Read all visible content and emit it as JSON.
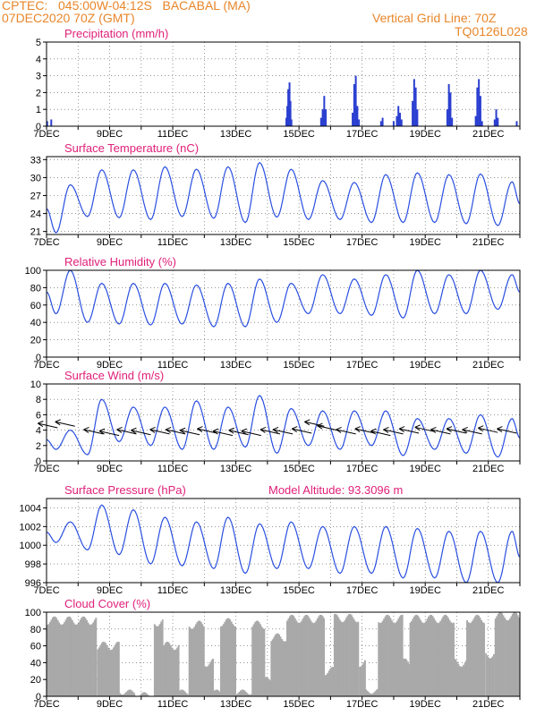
{
  "header": {
    "line1": "CPTEC:   045:00W-04:12S   BACABAL (MA)",
    "line2": "07DEC2020 70Z (GMT)",
    "vgrid": "Vertical Grid Line: 70Z",
    "code": "TQ0126L028",
    "model_altitude": "Model Altitude: 93.3096  m"
  },
  "colors": {
    "header": "#e8862a",
    "title": "#e0207a",
    "line": "#2a4fe0",
    "bar": "#2a3fd0",
    "cloud": "#a9a9a9"
  },
  "chart_data": [
    {
      "type": "bar",
      "title": "Precipitation (mm/h)",
      "xlabel": "",
      "ylabel": "",
      "x_ticks": [
        "7DEC",
        "9DEC",
        "11DEC",
        "13DEC",
        "15DEC",
        "17DEC",
        "19DEC",
        "21DEC"
      ],
      "yticks": [
        0,
        1,
        2,
        3,
        4,
        5
      ],
      "ylim": [
        0,
        5
      ],
      "xlim_days": [
        7,
        22
      ],
      "grid": true,
      "events": [
        [
          7.02,
          0.3
        ],
        [
          7.15,
          0.4
        ],
        [
          14.6,
          0.5
        ],
        [
          14.63,
          1.2
        ],
        [
          14.66,
          2.2
        ],
        [
          14.7,
          2.6
        ],
        [
          14.73,
          1.5
        ],
        [
          14.76,
          0.4
        ],
        [
          15.7,
          0.5
        ],
        [
          15.75,
          1.0
        ],
        [
          15.8,
          1.8
        ],
        [
          15.85,
          1.0
        ],
        [
          16.7,
          0.8
        ],
        [
          16.75,
          2.5
        ],
        [
          16.8,
          3.0
        ],
        [
          16.85,
          1.2
        ],
        [
          16.9,
          0.4
        ],
        [
          17.6,
          0.3
        ],
        [
          17.65,
          0.5
        ],
        [
          18.0,
          0.3
        ],
        [
          18.1,
          0.6
        ],
        [
          18.15,
          1.2
        ],
        [
          18.2,
          0.8
        ],
        [
          18.25,
          0.4
        ],
        [
          18.6,
          1.5
        ],
        [
          18.65,
          2.8
        ],
        [
          18.7,
          2.3
        ],
        [
          18.75,
          1.0
        ],
        [
          19.7,
          1.0
        ],
        [
          19.75,
          2.5
        ],
        [
          19.8,
          2.0
        ],
        [
          19.85,
          0.5
        ],
        [
          20.6,
          0.6
        ],
        [
          20.65,
          2.3
        ],
        [
          20.7,
          2.8
        ],
        [
          20.75,
          1.8
        ],
        [
          20.8,
          0.3
        ],
        [
          21.2,
          0.4
        ],
        [
          21.25,
          1.0
        ],
        [
          21.3,
          0.5
        ],
        [
          21.9,
          0.3
        ]
      ]
    },
    {
      "type": "line",
      "title": "Surface Temperature (nC)",
      "xlabel": "",
      "ylabel": "",
      "x_ticks": [
        "7DEC",
        "9DEC",
        "11DEC",
        "13DEC",
        "15DEC",
        "17DEC",
        "19DEC",
        "21DEC"
      ],
      "yticks": [
        21,
        24,
        27,
        30,
        33
      ],
      "ylim": [
        20.5,
        33.5
      ],
      "xlim_days": [
        7,
        22
      ],
      "daily": {
        "days": [
          7,
          8,
          9,
          10,
          11,
          12,
          13,
          14,
          15,
          16,
          17,
          18,
          19,
          20,
          21
        ],
        "min": [
          20.8,
          23.5,
          23.3,
          23.0,
          23.5,
          23.2,
          22.5,
          23.4,
          23.0,
          23.0,
          22.5,
          22.5,
          22.5,
          22.3,
          22.0
        ],
        "max": [
          28.8,
          31.3,
          31.3,
          31.8,
          31.4,
          31.8,
          32.5,
          31.4,
          29.5,
          29.2,
          30.5,
          30.8,
          30.5,
          30.6,
          29.3
        ]
      }
    },
    {
      "type": "line",
      "title": "Relative Humidity (%)",
      "xlabel": "",
      "ylabel": "",
      "x_ticks": [
        "7DEC",
        "9DEC",
        "11DEC",
        "13DEC",
        "15DEC",
        "17DEC",
        "19DEC",
        "21DEC"
      ],
      "yticks": [
        0,
        20,
        40,
        60,
        80,
        100
      ],
      "ylim": [
        0,
        100
      ],
      "xlim_days": [
        7,
        22
      ],
      "daily": {
        "days": [
          7,
          8,
          9,
          10,
          11,
          12,
          13,
          14,
          15,
          16,
          17,
          18,
          19,
          20,
          21
        ],
        "min": [
          50,
          40,
          38,
          37,
          38,
          35,
          35,
          40,
          50,
          50,
          48,
          45,
          50,
          50,
          55
        ],
        "max": [
          100,
          85,
          85,
          85,
          83,
          85,
          90,
          85,
          95,
          90,
          95,
          100,
          95,
          100,
          95
        ]
      }
    },
    {
      "type": "line",
      "title": "Surface Wind (m/s)",
      "xlabel": "",
      "ylabel": "",
      "x_ticks": [
        "7DEC",
        "9DEC",
        "11DEC",
        "13DEC",
        "15DEC",
        "17DEC",
        "19DEC",
        "21DEC"
      ],
      "yticks": [
        0,
        2,
        4,
        6,
        8,
        10
      ],
      "ylim": [
        0,
        10
      ],
      "xlim_days": [
        7,
        22
      ],
      "daily": {
        "days": [
          7,
          8,
          9,
          10,
          11,
          12,
          13,
          14,
          15,
          16,
          17,
          18,
          19,
          20,
          21
        ],
        "min": [
          1.5,
          0.8,
          2.5,
          2.0,
          1.5,
          1.5,
          1.8,
          1.0,
          2.0,
          1.5,
          2.0,
          0.7,
          1.5,
          1.0,
          0.5
        ],
        "max": [
          4.0,
          8.0,
          7.0,
          7.0,
          7.8,
          7.0,
          8.5,
          6.8,
          6.5,
          6.5,
          6.5,
          5.5,
          5.5,
          6.0,
          5.5
        ]
      },
      "arrows": [
        [
          7.35,
          4.3
        ],
        [
          7.9,
          4.5
        ],
        [
          8.8,
          3.5
        ],
        [
          9.3,
          3.3
        ],
        [
          9.85,
          3.5
        ],
        [
          10.3,
          3.4
        ],
        [
          10.9,
          3.5
        ],
        [
          11.4,
          3.5
        ],
        [
          11.85,
          3.4
        ],
        [
          12.4,
          3.6
        ],
        [
          12.9,
          3.3
        ],
        [
          13.4,
          3.4
        ],
        [
          13.8,
          3.3
        ],
        [
          14.4,
          3.5
        ],
        [
          14.8,
          3.5
        ],
        [
          15.4,
          3.6
        ],
        [
          15.8,
          4.5
        ],
        [
          16.2,
          4.0
        ],
        [
          16.8,
          3.5
        ],
        [
          17.4,
          3.6
        ],
        [
          17.9,
          3.3
        ],
        [
          18.3,
          3.5
        ],
        [
          18.8,
          3.6
        ],
        [
          19.3,
          3.8
        ],
        [
          19.8,
          3.5
        ],
        [
          20.3,
          3.6
        ],
        [
          20.8,
          3.5
        ],
        [
          21.3,
          3.7
        ],
        [
          21.9,
          3.6
        ]
      ]
    },
    {
      "type": "line",
      "title": "Surface Pressure (hPa)",
      "xlabel": "",
      "ylabel": "",
      "x_ticks": [
        "7DEC",
        "9DEC",
        "11DEC",
        "13DEC",
        "15DEC",
        "17DEC",
        "19DEC",
        "21DEC"
      ],
      "yticks": [
        996,
        998,
        1000,
        1002,
        1004
      ],
      "ylim": [
        996,
        1005
      ],
      "xlim_days": [
        7,
        22
      ],
      "daily": {
        "days": [
          7,
          8,
          9,
          10,
          11,
          12,
          13,
          14,
          15,
          16,
          17,
          18,
          19,
          20,
          21
        ],
        "min": [
          1000.3,
          999.5,
          999.0,
          998.0,
          997.8,
          997.5,
          997.0,
          997.5,
          997.5,
          997.0,
          997.0,
          996.5,
          996.5,
          996.0,
          996.0
        ],
        "max": [
          1002.5,
          1004.3,
          1003.8,
          1003.0,
          1002.5,
          1003.0,
          1002.3,
          1002.5,
          1002.0,
          1002.0,
          1002.0,
          1001.8,
          1001.5,
          1001.5,
          1001.5
        ]
      }
    },
    {
      "type": "bar",
      "title": "Cloud Cover (%)",
      "xlabel": "",
      "ylabel": "",
      "x_ticks": [
        "7DEC",
        "9DEC",
        "11DEC",
        "13DEC",
        "15DEC",
        "17DEC",
        "19DEC",
        "21DEC"
      ],
      "yticks": [
        0,
        20,
        40,
        60,
        80,
        100
      ],
      "ylim": [
        0,
        100
      ],
      "xlim_days": [
        7,
        22
      ],
      "segments": [
        [
          7.0,
          8.6,
          90
        ],
        [
          8.6,
          9.3,
          60
        ],
        [
          9.3,
          9.8,
          5
        ],
        [
          9.8,
          10.4,
          2
        ],
        [
          10.4,
          10.7,
          88
        ],
        [
          10.7,
          11.2,
          60
        ],
        [
          11.2,
          11.5,
          5
        ],
        [
          11.5,
          12.0,
          85
        ],
        [
          12.0,
          12.3,
          40
        ],
        [
          12.3,
          12.5,
          5
        ],
        [
          12.5,
          13.0,
          88
        ],
        [
          13.0,
          13.5,
          5
        ],
        [
          13.5,
          13.9,
          85
        ],
        [
          13.9,
          14.1,
          20
        ],
        [
          14.1,
          14.6,
          70
        ],
        [
          14.6,
          15.8,
          92
        ],
        [
          15.8,
          16.1,
          30
        ],
        [
          16.1,
          16.9,
          93
        ],
        [
          16.9,
          17.1,
          40
        ],
        [
          17.1,
          17.5,
          6
        ],
        [
          17.5,
          18.3,
          92
        ],
        [
          18.3,
          18.5,
          40
        ],
        [
          18.5,
          19.9,
          92
        ],
        [
          19.9,
          20.3,
          40
        ],
        [
          20.3,
          20.9,
          92
        ],
        [
          20.9,
          21.2,
          50
        ],
        [
          21.2,
          22.0,
          95
        ]
      ]
    }
  ]
}
